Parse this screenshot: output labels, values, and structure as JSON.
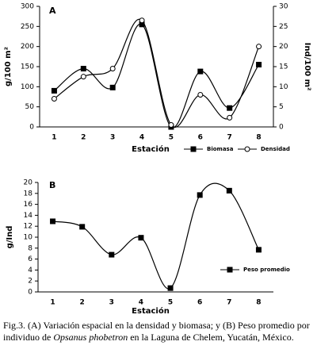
{
  "chart_data": [
    {
      "type": "line",
      "panel": "A",
      "categories": [
        "1",
        "2",
        "3",
        "4",
        "5",
        "6",
        "7",
        "8"
      ],
      "x_label": "Estación",
      "y_label": "g/100 m²",
      "y2_label": "Ind/100 m²",
      "ylim": [
        0,
        300
      ],
      "yticks": [
        0,
        50,
        100,
        150,
        200,
        250,
        300
      ],
      "y2lim": [
        0,
        30
      ],
      "y2ticks": [
        0,
        5,
        10,
        15,
        20,
        25,
        30
      ],
      "series": [
        {
          "name": "Biomasa",
          "color": "#000000",
          "marker": "square",
          "values": [
            90,
            145,
            98,
            255,
            0,
            138,
            47,
            155
          ]
        },
        {
          "name": "Densidad",
          "color": "#000000",
          "marker": "circle",
          "axis": "y2",
          "values": [
            7,
            12.5,
            14.5,
            26.5,
            0.5,
            8,
            2.3,
            20
          ]
        }
      ]
    },
    {
      "type": "line",
      "panel": "B",
      "categories": [
        "1",
        "2",
        "3",
        "4",
        "5",
        "6",
        "7",
        "8"
      ],
      "x_label": "Estación",
      "y_label": "g/Ind",
      "ylim": [
        0,
        20
      ],
      "yticks": [
        0,
        2,
        4,
        6,
        8,
        10,
        12,
        14,
        16,
        18,
        20
      ],
      "series": [
        {
          "name": "Peso promedio",
          "color": "#000000",
          "marker": "square",
          "values": [
            12.9,
            11.9,
            6.8,
            9.9,
            0.7,
            17.7,
            18.5,
            7.7
          ]
        }
      ]
    }
  ],
  "caption": {
    "text_before": "Fig.3. (A) Variación espacial en la densidad y biomasa; y (B) Peso promedio por individuo de",
    "species": "Opsanus phobetron",
    "text_after": "en la Laguna de Chelem, Yucatán, México."
  }
}
